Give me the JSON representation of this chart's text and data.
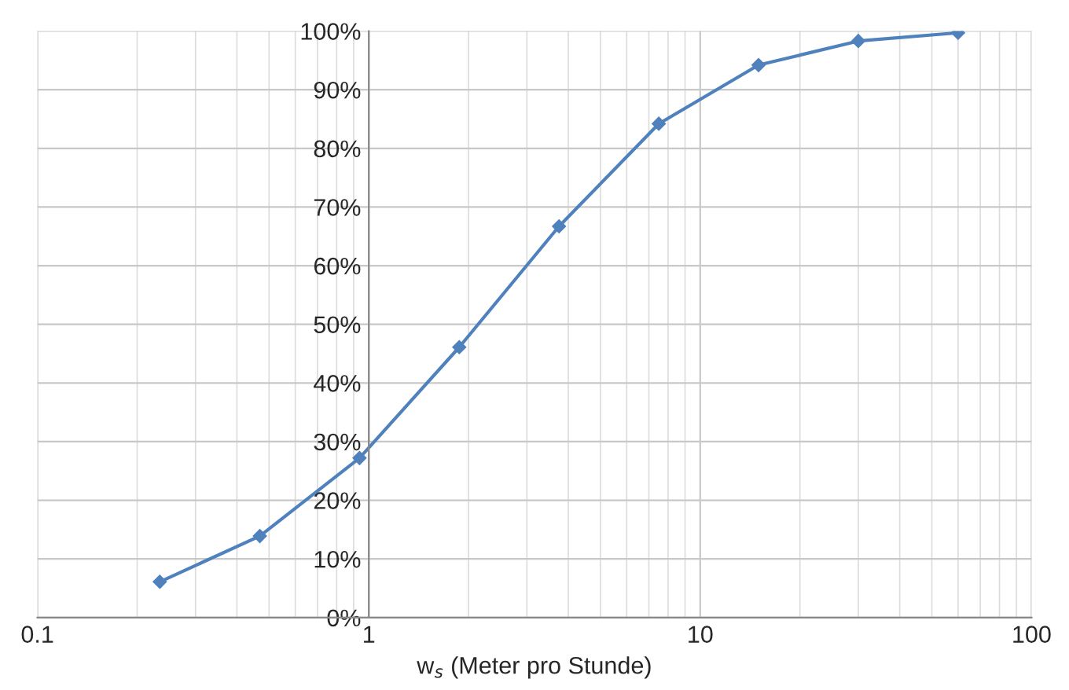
{
  "chart_data": {
    "type": "line",
    "xlabel": "w$_{s}$ (Meter pro Stunde)",
    "x": [
      0.234,
      0.469,
      0.9375,
      1.875,
      3.75,
      7.5,
      15,
      30,
      60
    ],
    "series": [
      {
        "color": "#4f81bd",
        "values": [
          6.1,
          13.9,
          27.2,
          46.1,
          66.7,
          84.2,
          94.2,
          98.3,
          99.7
        ]
      }
    ],
    "log": "x",
    "xlim": [
      0.1,
      100
    ],
    "xticks": [
      0.1,
      1,
      10,
      100
    ],
    "ylim": [
      0,
      100
    ],
    "yticks": [
      {
        "value": 0,
        "label": "0%"
      },
      {
        "value": 10,
        "label": "10%"
      },
      {
        "value": 20,
        "label": "20%"
      },
      {
        "value": 30,
        "label": "30%"
      },
      {
        "value": 40,
        "label": "40%"
      },
      {
        "value": 50,
        "label": "50%"
      },
      {
        "value": 60,
        "label": "60%"
      },
      {
        "value": 70,
        "label": "70%"
      },
      {
        "value": 80,
        "label": "80%"
      },
      {
        "value": 90,
        "label": "90%"
      },
      {
        "value": 100,
        "label": "100%"
      }
    ],
    "grid": true,
    "marker": "diamond",
    "line_style": "solid"
  }
}
